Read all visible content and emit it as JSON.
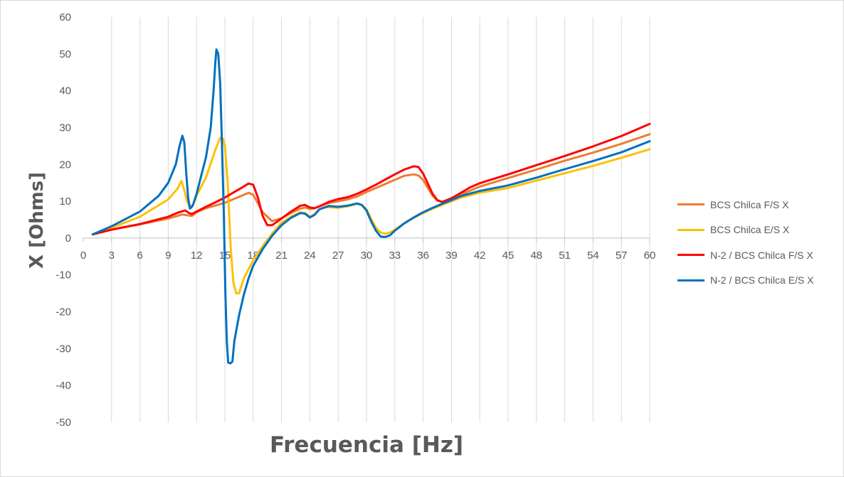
{
  "chart_data": {
    "type": "line",
    "xlabel": "Frecuencia [Hz]",
    "ylabel": "X [Ohms]",
    "xlim": [
      0,
      60
    ],
    "ylim": [
      -50,
      60
    ],
    "x_ticks": [
      0,
      3,
      6,
      9,
      12,
      15,
      18,
      21,
      24,
      27,
      30,
      33,
      36,
      39,
      42,
      45,
      48,
      51,
      54,
      57,
      60
    ],
    "y_ticks": [
      -50,
      -40,
      -30,
      -20,
      -10,
      0,
      10,
      20,
      30,
      40,
      50,
      60
    ],
    "grid": {
      "vertical": true,
      "horizontal": false
    },
    "legend_position": "right",
    "series": [
      {
        "name": "BCS Chilca F/S X",
        "color": "#ED7D31",
        "points": [
          [
            1,
            1
          ],
          [
            3,
            2.3
          ],
          [
            6,
            3.7
          ],
          [
            9,
            5.3
          ],
          [
            10.5,
            6.4
          ],
          [
            11,
            6.2
          ],
          [
            11.5,
            6
          ],
          [
            12,
            7
          ],
          [
            13,
            8.1
          ],
          [
            15,
            9.6
          ],
          [
            16.5,
            11.2
          ],
          [
            17.5,
            12.3
          ],
          [
            18,
            11.8
          ],
          [
            19,
            7
          ],
          [
            20,
            4.6
          ],
          [
            21,
            5.4
          ],
          [
            22,
            6.8
          ],
          [
            23,
            8
          ],
          [
            23.5,
            8.3
          ],
          [
            24,
            7.9
          ],
          [
            24.5,
            8.1
          ],
          [
            25,
            8.6
          ],
          [
            26,
            9.5
          ],
          [
            27,
            10
          ],
          [
            28,
            10.5
          ],
          [
            29,
            11.3
          ],
          [
            30,
            12.5
          ],
          [
            31,
            13.6
          ],
          [
            32,
            14.7
          ],
          [
            33,
            15.8
          ],
          [
            34,
            16.9
          ],
          [
            35,
            17.3
          ],
          [
            35.5,
            17
          ],
          [
            36,
            15.8
          ],
          [
            37,
            11.5
          ],
          [
            37.5,
            10.2
          ],
          [
            38,
            9.8
          ],
          [
            39,
            10.5
          ],
          [
            40,
            11.8
          ],
          [
            41,
            12.9
          ],
          [
            42,
            14
          ],
          [
            45,
            16.3
          ],
          [
            48,
            18.6
          ],
          [
            51,
            21
          ],
          [
            54,
            23.2
          ],
          [
            57,
            25.6
          ],
          [
            60,
            28.2
          ]
        ]
      },
      {
        "name": "BCS Chilca E/S X",
        "color": "#FFC000",
        "points": [
          [
            1,
            1
          ],
          [
            3,
            2.8
          ],
          [
            6,
            5.8
          ],
          [
            9,
            10.5
          ],
          [
            10,
            13.5
          ],
          [
            10.4,
            15.5
          ],
          [
            10.7,
            13
          ],
          [
            11,
            10
          ],
          [
            11.3,
            8.3
          ],
          [
            11.7,
            9.5
          ],
          [
            12,
            11.5
          ],
          [
            13,
            16.5
          ],
          [
            14,
            24
          ],
          [
            14.5,
            27.2
          ],
          [
            14.8,
            27
          ],
          [
            15,
            25
          ],
          [
            15.3,
            15
          ],
          [
            15.6,
            -2
          ],
          [
            15.9,
            -12
          ],
          [
            16.2,
            -15
          ],
          [
            16.5,
            -15
          ],
          [
            17,
            -11
          ],
          [
            18,
            -6
          ],
          [
            19,
            -2.2
          ],
          [
            20,
            1.2
          ],
          [
            21,
            4.2
          ],
          [
            22,
            5.8
          ],
          [
            23,
            7
          ],
          [
            23.5,
            6.8
          ],
          [
            24,
            5.8
          ],
          [
            24.5,
            6.5
          ],
          [
            25,
            7.8
          ],
          [
            25.5,
            8.3
          ],
          [
            26,
            8.4
          ],
          [
            27,
            8.2
          ],
          [
            28,
            8.6
          ],
          [
            29,
            9.3
          ],
          [
            29.5,
            9
          ],
          [
            30,
            7.8
          ],
          [
            30.5,
            5.2
          ],
          [
            31,
            2.8
          ],
          [
            31.5,
            1.5
          ],
          [
            32,
            1.2
          ],
          [
            32.5,
            1.5
          ],
          [
            33,
            2.3
          ],
          [
            34,
            4
          ],
          [
            35,
            5.5
          ],
          [
            36,
            6.8
          ],
          [
            37,
            8
          ],
          [
            38,
            9
          ],
          [
            39,
            10
          ],
          [
            40,
            11
          ],
          [
            42,
            12.3
          ],
          [
            45,
            13.6
          ],
          [
            48,
            15.6
          ],
          [
            51,
            17.6
          ],
          [
            54,
            19.6
          ],
          [
            57,
            21.8
          ],
          [
            60,
            24.1
          ]
        ]
      },
      {
        "name": "N-2 / BCS Chilca F/S X",
        "color": "#FF0000",
        "points": [
          [
            1,
            1
          ],
          [
            3,
            2.3
          ],
          [
            6,
            3.8
          ],
          [
            9,
            5.8
          ],
          [
            10,
            6.9
          ],
          [
            10.8,
            7.5
          ],
          [
            11.2,
            6.8
          ],
          [
            11.5,
            6.5
          ],
          [
            12,
            7.2
          ],
          [
            13,
            8.5
          ],
          [
            14,
            9.7
          ],
          [
            15,
            11
          ],
          [
            16,
            12.5
          ],
          [
            17,
            14
          ],
          [
            17.5,
            14.8
          ],
          [
            18,
            14.5
          ],
          [
            18.5,
            11
          ],
          [
            19,
            6
          ],
          [
            19.5,
            3.5
          ],
          [
            20,
            3.5
          ],
          [
            21,
            5.3
          ],
          [
            22,
            7.2
          ],
          [
            23,
            8.8
          ],
          [
            23.5,
            9
          ],
          [
            24,
            8.3
          ],
          [
            24.5,
            8.1
          ],
          [
            25,
            8.6
          ],
          [
            26,
            9.8
          ],
          [
            27,
            10.6
          ],
          [
            28,
            11.1
          ],
          [
            29,
            12
          ],
          [
            30,
            13.2
          ],
          [
            31,
            14.5
          ],
          [
            32,
            15.9
          ],
          [
            33,
            17.3
          ],
          [
            34,
            18.6
          ],
          [
            35,
            19.5
          ],
          [
            35.5,
            19.3
          ],
          [
            36,
            17.5
          ],
          [
            37,
            12
          ],
          [
            37.5,
            10.3
          ],
          [
            38,
            9.8
          ],
          [
            39,
            10.8
          ],
          [
            40,
            12.3
          ],
          [
            41,
            13.8
          ],
          [
            42,
            14.9
          ],
          [
            45,
            17.3
          ],
          [
            48,
            19.8
          ],
          [
            51,
            22.3
          ],
          [
            54,
            24.9
          ],
          [
            57,
            27.7
          ],
          [
            60,
            31
          ]
        ]
      },
      {
        "name": "N-2 / BCS Chilca E/S X",
        "color": "#0070C0",
        "points": [
          [
            1,
            1
          ],
          [
            3,
            3.2
          ],
          [
            6,
            7.2
          ],
          [
            8,
            11.5
          ],
          [
            9,
            15
          ],
          [
            9.8,
            20
          ],
          [
            10.2,
            25
          ],
          [
            10.5,
            27.8
          ],
          [
            10.7,
            26
          ],
          [
            10.9,
            18
          ],
          [
            11.1,
            11
          ],
          [
            11.3,
            8
          ],
          [
            11.6,
            8.8
          ],
          [
            12,
            12
          ],
          [
            13,
            22
          ],
          [
            13.5,
            30
          ],
          [
            13.8,
            40
          ],
          [
            14,
            48
          ],
          [
            14.1,
            51.2
          ],
          [
            14.3,
            50
          ],
          [
            14.5,
            42
          ],
          [
            14.7,
            25
          ],
          [
            14.9,
            5
          ],
          [
            15.05,
            -15
          ],
          [
            15.2,
            -28
          ],
          [
            15.35,
            -33.8
          ],
          [
            15.6,
            -34
          ],
          [
            15.8,
            -33.5
          ],
          [
            16,
            -28
          ],
          [
            16.5,
            -21
          ],
          [
            17,
            -15.5
          ],
          [
            17.5,
            -11
          ],
          [
            18,
            -7.5
          ],
          [
            19,
            -3
          ],
          [
            20,
            0.6
          ],
          [
            21,
            3.5
          ],
          [
            22,
            5.5
          ],
          [
            23,
            6.8
          ],
          [
            23.5,
            6.6
          ],
          [
            24,
            5.6
          ],
          [
            24.5,
            6.3
          ],
          [
            25,
            7.8
          ],
          [
            26,
            8.7
          ],
          [
            27,
            8.5
          ],
          [
            28,
            8.8
          ],
          [
            29,
            9.4
          ],
          [
            29.5,
            9
          ],
          [
            30,
            7.5
          ],
          [
            30.5,
            4.5
          ],
          [
            31,
            2
          ],
          [
            31.5,
            0.4
          ],
          [
            32,
            0.3
          ],
          [
            32.5,
            0.8
          ],
          [
            33,
            2
          ],
          [
            34,
            4
          ],
          [
            35,
            5.6
          ],
          [
            36,
            7
          ],
          [
            37,
            8.2
          ],
          [
            38,
            9.3
          ],
          [
            39,
            10.3
          ],
          [
            40,
            11.4
          ],
          [
            42,
            12.8
          ],
          [
            45,
            14.3
          ],
          [
            48,
            16.4
          ],
          [
            51,
            18.7
          ],
          [
            54,
            20.9
          ],
          [
            57,
            23.3
          ],
          [
            60,
            26.3
          ]
        ]
      }
    ]
  }
}
